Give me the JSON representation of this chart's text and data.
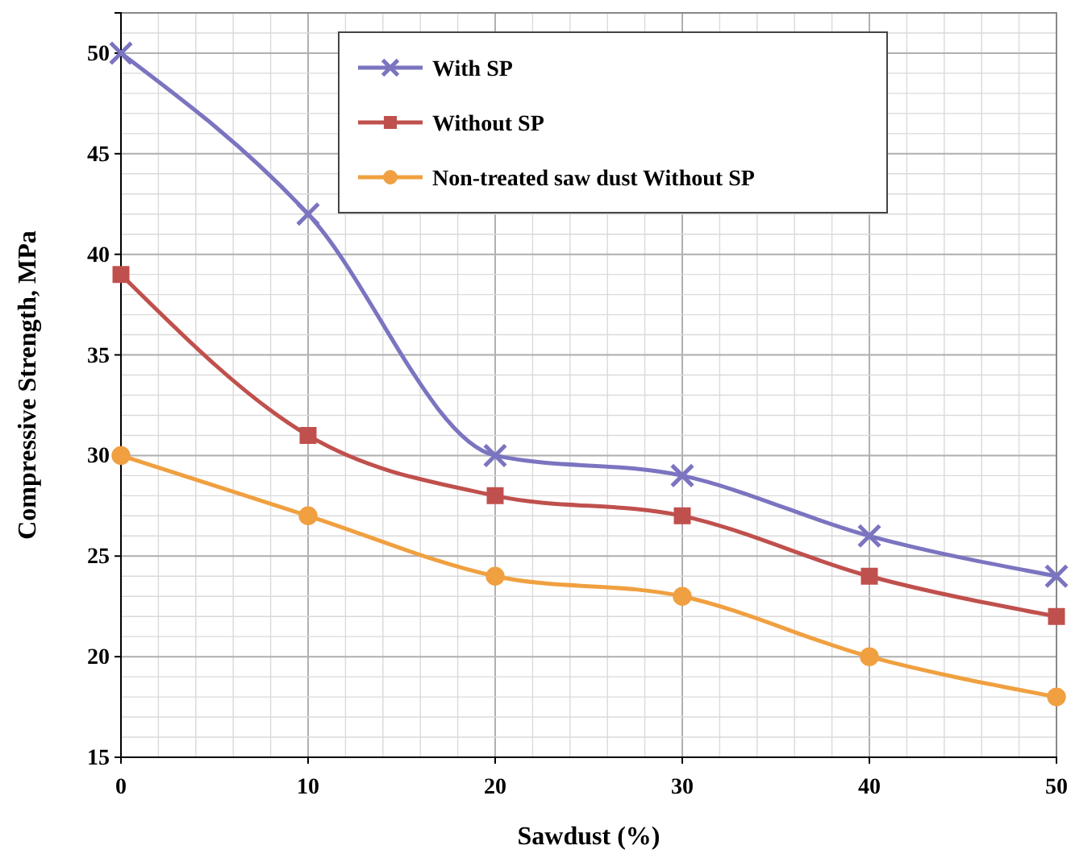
{
  "chart_data": {
    "type": "line",
    "xlabel": "Sawdust (%)",
    "ylabel": "Compressive Strength, MPa",
    "x": [
      0,
      10,
      20,
      30,
      40,
      50
    ],
    "series": [
      {
        "name": "With SP",
        "color": "#7b74c0",
        "marker": "cross",
        "values": [
          50,
          42,
          30,
          29,
          26,
          24
        ]
      },
      {
        "name": "Without SP",
        "color": "#c0504d",
        "marker": "square",
        "values": [
          39,
          31,
          28,
          27,
          24,
          22
        ]
      },
      {
        "name": "Non-treated saw dust Without SP",
        "color": "#f0a040",
        "marker": "circle",
        "values": [
          30,
          27,
          24,
          23,
          20,
          18
        ]
      }
    ],
    "xlim": [
      0,
      50
    ],
    "xticks": [
      0,
      10,
      20,
      30,
      40,
      50
    ],
    "ylim": [
      15,
      52
    ],
    "yticks": [
      15,
      20,
      25,
      30,
      35,
      40,
      45,
      50
    ],
    "grid": true,
    "legend": "top"
  }
}
